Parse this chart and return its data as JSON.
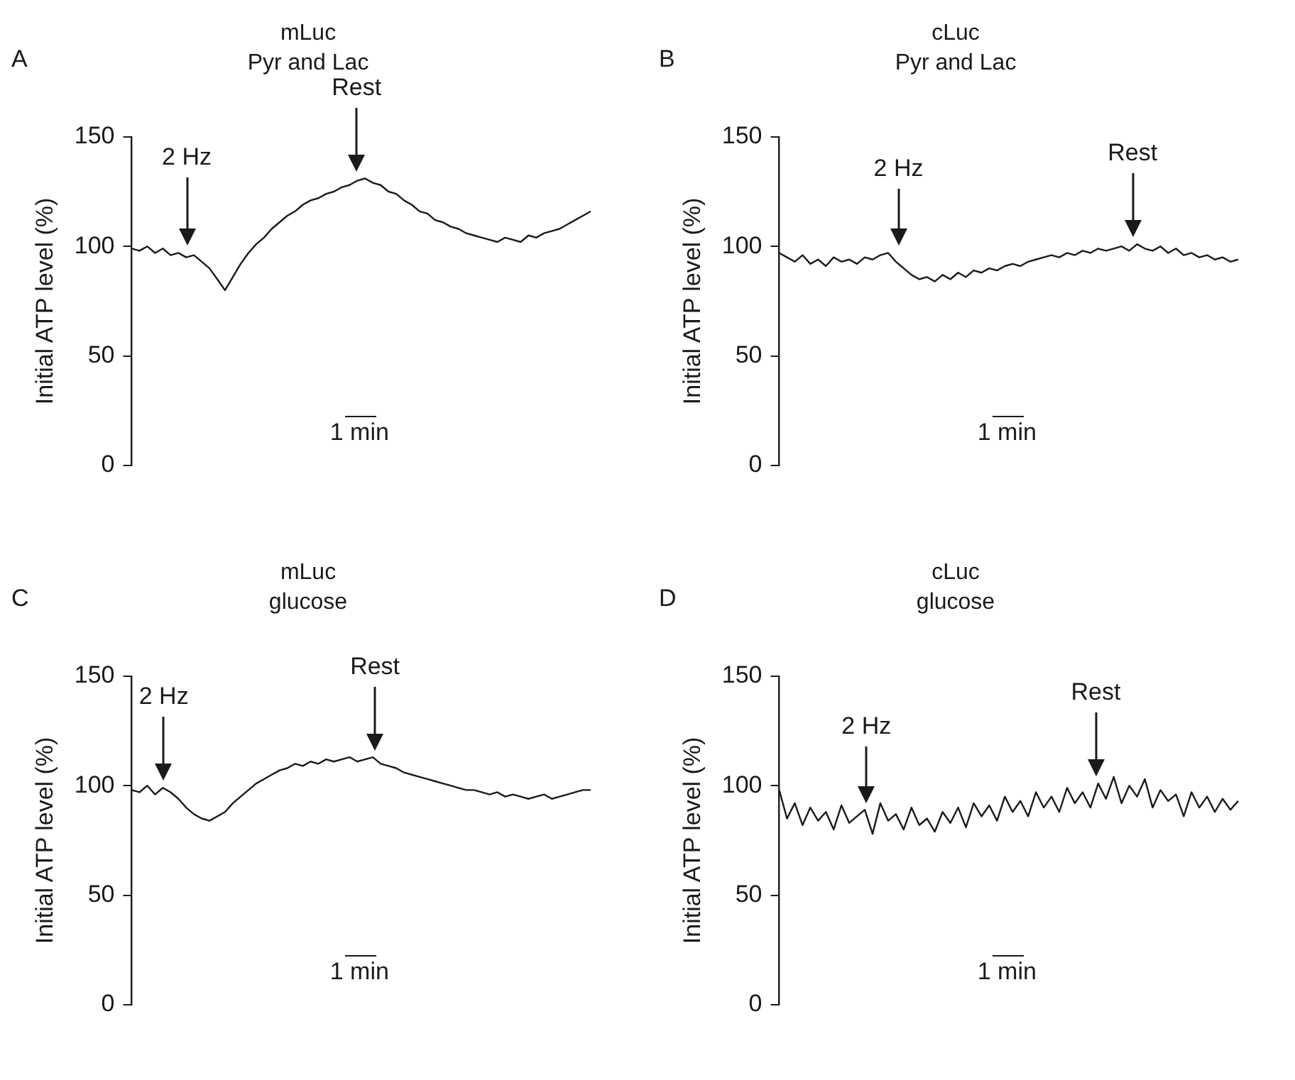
{
  "chart_data": [
    {
      "type": "line",
      "title": "mLuc",
      "subtitle": "Pyr and Lac",
      "ylabel": "Initial ATP level (%)",
      "ylim": [
        0,
        150
      ],
      "yticks": [
        0,
        50,
        100,
        150
      ],
      "grid": false,
      "legend": false,
      "marker": "none",
      "tick_labels": "y",
      "categories": [
        null,
        null,
        null,
        null,
        null,
        null,
        null,
        null,
        null,
        null,
        null,
        null,
        null,
        null,
        null,
        null,
        null,
        null,
        null,
        null,
        null,
        null,
        null,
        null,
        null,
        null,
        null,
        null,
        null,
        null,
        null,
        null,
        null,
        null,
        null,
        null,
        null,
        null,
        null,
        null,
        null,
        null,
        null,
        null,
        null,
        null,
        null,
        null,
        null,
        null,
        null,
        null,
        null,
        null,
        null,
        null,
        null,
        null,
        null,
        null
      ],
      "series": [
        {
          "color": "#1a1a1a",
          "values": [
            99,
            98,
            100,
            97,
            99,
            96,
            97,
            95,
            96,
            93,
            90,
            85,
            80,
            86,
            92,
            97,
            101,
            104,
            108,
            111,
            114,
            116,
            119,
            121,
            122,
            124,
            125,
            127,
            128,
            130,
            131,
            129,
            128,
            125,
            124,
            121,
            119,
            116,
            115,
            112,
            111,
            109,
            108,
            106,
            105,
            104,
            103,
            102,
            104,
            103,
            102,
            105,
            104,
            106,
            107,
            108,
            110,
            112,
            114,
            116
          ]
        }
      ],
      "annotations": [
        "A",
        "2 Hz",
        "Rest",
        "1 min"
      ]
    },
    {
      "type": "line",
      "title": "cLuc",
      "subtitle": "Pyr and Lac",
      "ylabel": "Initial ATP level (%)",
      "ylim": [
        0,
        150
      ],
      "yticks": [
        0,
        50,
        100,
        150
      ],
      "grid": false,
      "legend": false,
      "marker": "none",
      "tick_labels": "y",
      "categories": [
        null,
        null,
        null,
        null,
        null,
        null,
        null,
        null,
        null,
        null,
        null,
        null,
        null,
        null,
        null,
        null,
        null,
        null,
        null,
        null,
        null,
        null,
        null,
        null,
        null,
        null,
        null,
        null,
        null,
        null,
        null,
        null,
        null,
        null,
        null,
        null,
        null,
        null,
        null,
        null,
        null,
        null,
        null,
        null,
        null,
        null,
        null,
        null,
        null,
        null,
        null,
        null,
        null,
        null,
        null,
        null,
        null,
        null,
        null,
        null
      ],
      "series": [
        {
          "color": "#1a1a1a",
          "values": [
            97,
            95,
            93,
            96,
            92,
            94,
            91,
            95,
            93,
            94,
            92,
            95,
            94,
            96,
            97,
            93,
            90,
            87,
            85,
            86,
            84,
            87,
            85,
            88,
            86,
            89,
            88,
            90,
            89,
            91,
            92,
            91,
            93,
            94,
            95,
            96,
            95,
            97,
            96,
            98,
            97,
            99,
            98,
            99,
            100,
            98,
            101,
            99,
            98,
            100,
            97,
            99,
            96,
            97,
            95,
            96,
            94,
            95,
            93,
            94
          ]
        }
      ],
      "annotations": [
        "B",
        "2 Hz",
        "Rest",
        "1 min"
      ]
    },
    {
      "type": "line",
      "title": "mLuc",
      "subtitle": "glucose",
      "ylabel": "Initial ATP level (%)",
      "ylim": [
        0,
        150
      ],
      "yticks": [
        0,
        50,
        100,
        150
      ],
      "grid": false,
      "legend": false,
      "marker": "none",
      "tick_labels": "y",
      "categories": [
        null,
        null,
        null,
        null,
        null,
        null,
        null,
        null,
        null,
        null,
        null,
        null,
        null,
        null,
        null,
        null,
        null,
        null,
        null,
        null,
        null,
        null,
        null,
        null,
        null,
        null,
        null,
        null,
        null,
        null,
        null,
        null,
        null,
        null,
        null,
        null,
        null,
        null,
        null,
        null,
        null,
        null,
        null,
        null,
        null,
        null,
        null,
        null,
        null,
        null,
        null,
        null,
        null,
        null,
        null,
        null,
        null,
        null,
        null,
        null
      ],
      "series": [
        {
          "color": "#1a1a1a",
          "values": [
            98,
            97,
            100,
            96,
            99,
            97,
            94,
            90,
            87,
            85,
            84,
            86,
            88,
            92,
            95,
            98,
            101,
            103,
            105,
            107,
            108,
            110,
            109,
            111,
            110,
            112,
            111,
            112,
            113,
            111,
            112,
            113,
            110,
            109,
            108,
            106,
            105,
            104,
            103,
            102,
            101,
            100,
            99,
            98,
            98,
            97,
            96,
            97,
            95,
            96,
            95,
            94,
            95,
            96,
            94,
            95,
            96,
            97,
            98,
            98
          ]
        }
      ],
      "annotations": [
        "C",
        "2 Hz",
        "Rest",
        "1 min"
      ]
    },
    {
      "type": "line",
      "title": "cLuc",
      "subtitle": "glucose",
      "ylabel": "Initial ATP level (%)",
      "ylim": [
        0,
        150
      ],
      "yticks": [
        0,
        50,
        100,
        150
      ],
      "grid": false,
      "legend": false,
      "marker": "none",
      "tick_labels": "y",
      "categories": [
        null,
        null,
        null,
        null,
        null,
        null,
        null,
        null,
        null,
        null,
        null,
        null,
        null,
        null,
        null,
        null,
        null,
        null,
        null,
        null,
        null,
        null,
        null,
        null,
        null,
        null,
        null,
        null,
        null,
        null,
        null,
        null,
        null,
        null,
        null,
        null,
        null,
        null,
        null,
        null,
        null,
        null,
        null,
        null,
        null,
        null,
        null,
        null,
        null,
        null,
        null,
        null,
        null,
        null,
        null,
        null,
        null,
        null,
        null,
        null
      ],
      "series": [
        {
          "color": "#1a1a1a",
          "values": [
            98,
            85,
            92,
            82,
            90,
            84,
            88,
            80,
            91,
            83,
            86,
            89,
            78,
            92,
            84,
            87,
            80,
            90,
            82,
            85,
            79,
            88,
            83,
            90,
            81,
            92,
            86,
            91,
            84,
            95,
            88,
            93,
            86,
            97,
            90,
            95,
            88,
            99,
            92,
            97,
            90,
            101,
            94,
            104,
            92,
            100,
            95,
            103,
            90,
            98,
            93,
            96,
            86,
            97,
            90,
            95,
            88,
            94,
            89,
            93
          ]
        }
      ],
      "annotations": [
        "D",
        "2 Hz",
        "Rest",
        "1 min"
      ]
    }
  ]
}
